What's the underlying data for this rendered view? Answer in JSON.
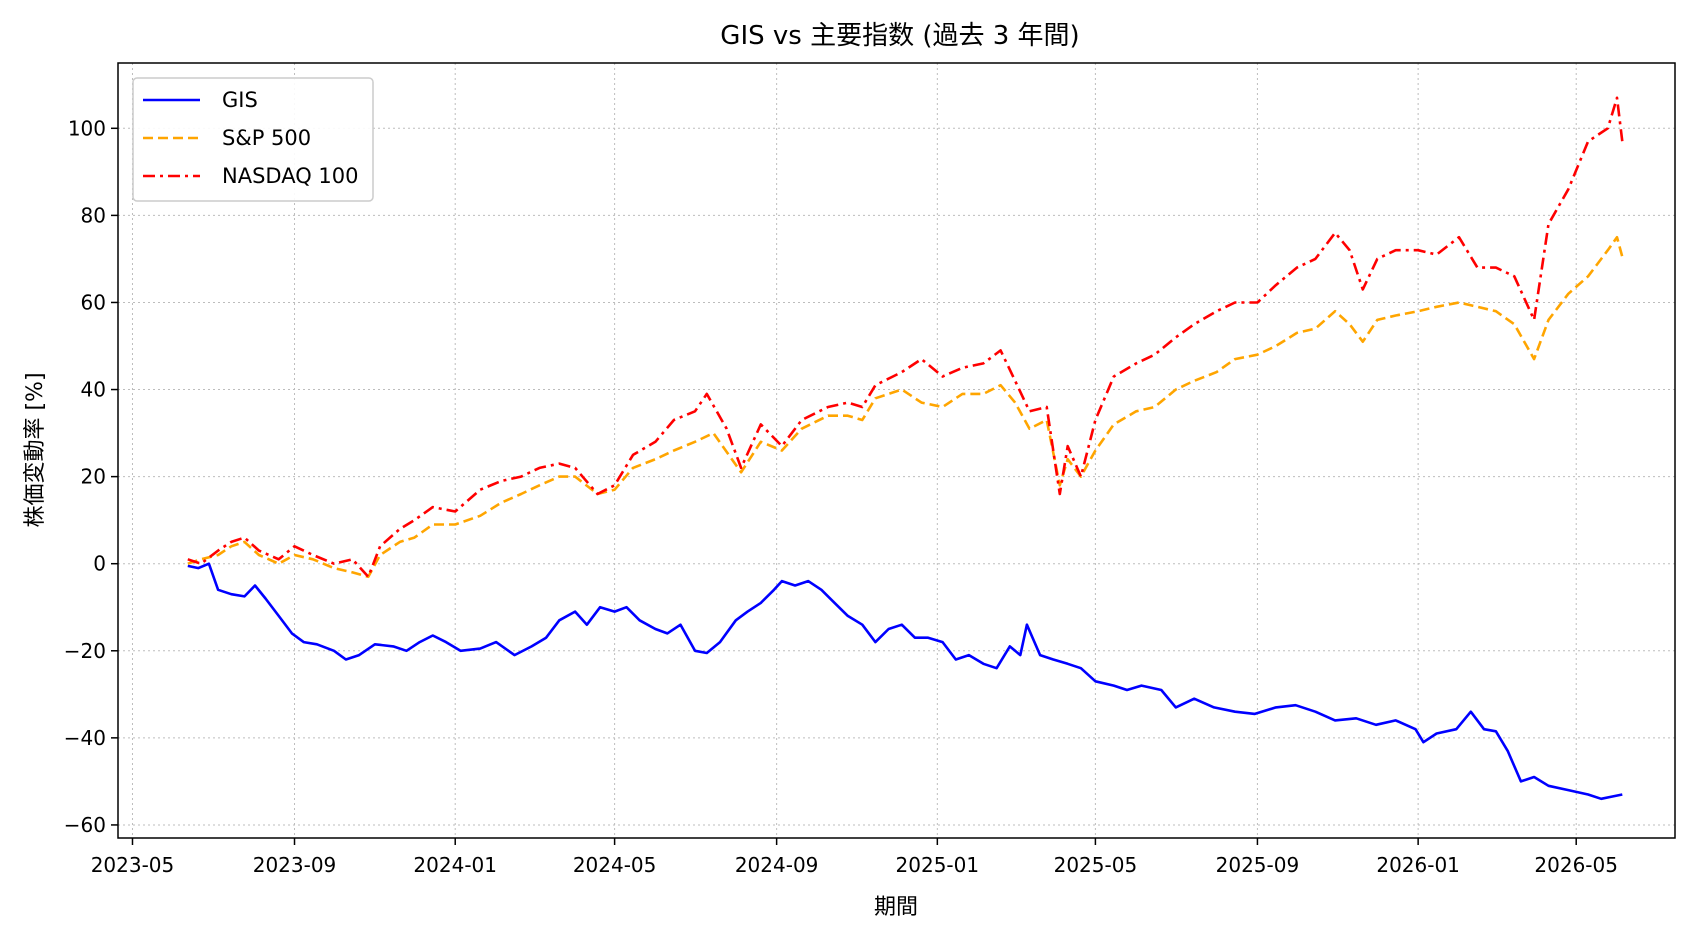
{
  "chart_data": {
    "type": "line",
    "title": "GIS vs 主要指数 (過去 3 年間)",
    "xlabel": "期間",
    "ylabel": "株価変動率 [%]",
    "xlim": [
      "2023-04-20",
      "2026-07-15"
    ],
    "ylim": [
      -63,
      115
    ],
    "xticks": [
      "2023-05",
      "2023-09",
      "2024-01",
      "2024-05",
      "2024-09",
      "2025-01",
      "2025-05",
      "2025-09",
      "2026-01",
      "2026-05"
    ],
    "yticks": [
      -60,
      -40,
      -20,
      0,
      20,
      40,
      60,
      80,
      100
    ],
    "grid": true,
    "legend_position": "top-left",
    "series": [
      {
        "name": "GIS",
        "color": "#0000ff",
        "dash": "solid",
        "points": [
          [
            "2023-06-12",
            -0.5
          ],
          [
            "2023-06-20",
            -1
          ],
          [
            "2023-06-28",
            0
          ],
          [
            "2023-07-05",
            -6
          ],
          [
            "2023-07-15",
            -7
          ],
          [
            "2023-07-25",
            -7.5
          ],
          [
            "2023-08-02",
            -5
          ],
          [
            "2023-08-10",
            -8
          ],
          [
            "2023-08-20",
            -12
          ],
          [
            "2023-08-30",
            -16
          ],
          [
            "2023-09-08",
            -18
          ],
          [
            "2023-09-18",
            -18.5
          ],
          [
            "2023-10-01",
            -20
          ],
          [
            "2023-10-10",
            -22
          ],
          [
            "2023-10-20",
            -21
          ],
          [
            "2023-11-01",
            -18.5
          ],
          [
            "2023-11-15",
            -19
          ],
          [
            "2023-11-25",
            -20
          ],
          [
            "2023-12-05",
            -18
          ],
          [
            "2023-12-15",
            -16.5
          ],
          [
            "2023-12-25",
            -18
          ],
          [
            "2024-01-05",
            -20
          ],
          [
            "2024-01-20",
            -19.5
          ],
          [
            "2024-02-01",
            -18
          ],
          [
            "2024-02-15",
            -21
          ],
          [
            "2024-02-28",
            -19
          ],
          [
            "2024-03-10",
            -17
          ],
          [
            "2024-03-20",
            -13
          ],
          [
            "2024-04-01",
            -11
          ],
          [
            "2024-04-10",
            -14
          ],
          [
            "2024-04-20",
            -10
          ],
          [
            "2024-05-01",
            -11
          ],
          [
            "2024-05-10",
            -10
          ],
          [
            "2024-05-20",
            -13
          ],
          [
            "2024-06-01",
            -15
          ],
          [
            "2024-06-10",
            -16
          ],
          [
            "2024-06-20",
            -14
          ],
          [
            "2024-07-01",
            -20
          ],
          [
            "2024-07-10",
            -20.5
          ],
          [
            "2024-07-20",
            -18
          ],
          [
            "2024-08-01",
            -13
          ],
          [
            "2024-08-10",
            -11
          ],
          [
            "2024-08-20",
            -9
          ],
          [
            "2024-08-30",
            -6
          ],
          [
            "2024-09-05",
            -4
          ],
          [
            "2024-09-15",
            -5
          ],
          [
            "2024-09-25",
            -4
          ],
          [
            "2024-10-05",
            -6
          ],
          [
            "2024-10-15",
            -9
          ],
          [
            "2024-10-25",
            -12
          ],
          [
            "2024-11-05",
            -14
          ],
          [
            "2024-11-15",
            -18
          ],
          [
            "2024-11-25",
            -15
          ],
          [
            "2024-12-05",
            -14
          ],
          [
            "2024-12-15",
            -17
          ],
          [
            "2024-12-25",
            -17
          ],
          [
            "2025-01-05",
            -18
          ],
          [
            "2025-01-15",
            -22
          ],
          [
            "2025-01-25",
            -21
          ],
          [
            "2025-02-05",
            -23
          ],
          [
            "2025-02-15",
            -24
          ],
          [
            "2025-02-25",
            -19
          ],
          [
            "2025-03-05",
            -21
          ],
          [
            "2025-03-10",
            -14
          ],
          [
            "2025-03-20",
            -21
          ],
          [
            "2025-03-30",
            -22
          ],
          [
            "2025-04-10",
            -23
          ],
          [
            "2025-04-20",
            -24
          ],
          [
            "2025-05-01",
            -27
          ],
          [
            "2025-05-15",
            -28
          ],
          [
            "2025-05-25",
            -29
          ],
          [
            "2025-06-05",
            -28
          ],
          [
            "2025-06-20",
            -29
          ],
          [
            "2025-07-01",
            -33
          ],
          [
            "2025-07-15",
            -31
          ],
          [
            "2025-07-30",
            -33
          ],
          [
            "2025-08-15",
            -34
          ],
          [
            "2025-08-30",
            -34.5
          ],
          [
            "2025-09-15",
            -33
          ],
          [
            "2025-09-30",
            -32.5
          ],
          [
            "2025-10-15",
            -34
          ],
          [
            "2025-10-30",
            -36
          ],
          [
            "2025-11-15",
            -35.5
          ],
          [
            "2025-11-30",
            -37
          ],
          [
            "2025-12-15",
            -36
          ],
          [
            "2025-12-30",
            -38
          ],
          [
            "2026-01-05",
            -41
          ],
          [
            "2026-01-15",
            -39
          ],
          [
            "2026-01-30",
            -38
          ],
          [
            "2026-02-10",
            -34
          ],
          [
            "2026-02-20",
            -38
          ],
          [
            "2026-03-01",
            -38.5
          ],
          [
            "2026-03-10",
            -43
          ],
          [
            "2026-03-20",
            -50
          ],
          [
            "2026-03-30",
            -49
          ],
          [
            "2026-04-10",
            -51
          ],
          [
            "2026-04-25",
            -52
          ],
          [
            "2026-05-10",
            -53
          ],
          [
            "2026-05-20",
            -54
          ],
          [
            "2026-05-28",
            -53.5
          ],
          [
            "2026-06-05",
            -53
          ]
        ]
      },
      {
        "name": "S&P 500",
        "color": "#ffa500",
        "dash": "dashed",
        "points": [
          [
            "2023-06-12",
            0
          ],
          [
            "2023-06-22",
            1
          ],
          [
            "2023-07-05",
            2
          ],
          [
            "2023-07-15",
            4
          ],
          [
            "2023-07-25",
            5
          ],
          [
            "2023-08-05",
            2
          ],
          [
            "2023-08-20",
            0
          ],
          [
            "2023-09-01",
            2
          ],
          [
            "2023-09-15",
            1
          ],
          [
            "2023-10-01",
            -1
          ],
          [
            "2023-10-15",
            -2
          ],
          [
            "2023-10-27",
            -3
          ],
          [
            "2023-11-05",
            2
          ],
          [
            "2023-11-20",
            5
          ],
          [
            "2023-12-01",
            6
          ],
          [
            "2023-12-15",
            9
          ],
          [
            "2024-01-01",
            9
          ],
          [
            "2024-01-20",
            11
          ],
          [
            "2024-02-05",
            14
          ],
          [
            "2024-02-20",
            16
          ],
          [
            "2024-03-05",
            18
          ],
          [
            "2024-03-20",
            20
          ],
          [
            "2024-04-01",
            20
          ],
          [
            "2024-04-18",
            16
          ],
          [
            "2024-05-01",
            17
          ],
          [
            "2024-05-15",
            22
          ],
          [
            "2024-06-01",
            24
          ],
          [
            "2024-06-15",
            26
          ],
          [
            "2024-07-01",
            28
          ],
          [
            "2024-07-15",
            30
          ],
          [
            "2024-08-05",
            21
          ],
          [
            "2024-08-20",
            28
          ],
          [
            "2024-09-05",
            26
          ],
          [
            "2024-09-20",
            31
          ],
          [
            "2024-10-10",
            34
          ],
          [
            "2024-10-25",
            34
          ],
          [
            "2024-11-05",
            33
          ],
          [
            "2024-11-15",
            38
          ],
          [
            "2024-12-05",
            40
          ],
          [
            "2024-12-20",
            37
          ],
          [
            "2025-01-05",
            36
          ],
          [
            "2025-01-20",
            39
          ],
          [
            "2025-02-05",
            39
          ],
          [
            "2025-02-18",
            41
          ],
          [
            "2025-03-01",
            37
          ],
          [
            "2025-03-12",
            31
          ],
          [
            "2025-03-25",
            33
          ],
          [
            "2025-04-04",
            18
          ],
          [
            "2025-04-10",
            24
          ],
          [
            "2025-04-20",
            20
          ],
          [
            "2025-05-01",
            26
          ],
          [
            "2025-05-15",
            32
          ],
          [
            "2025-06-01",
            35
          ],
          [
            "2025-06-15",
            36
          ],
          [
            "2025-07-01",
            40
          ],
          [
            "2025-07-15",
            42
          ],
          [
            "2025-08-01",
            44
          ],
          [
            "2025-08-15",
            47
          ],
          [
            "2025-09-01",
            48
          ],
          [
            "2025-09-15",
            50
          ],
          [
            "2025-10-01",
            53
          ],
          [
            "2025-10-15",
            54
          ],
          [
            "2025-10-30",
            58
          ],
          [
            "2025-11-10",
            55
          ],
          [
            "2025-11-20",
            51
          ],
          [
            "2025-12-01",
            56
          ],
          [
            "2025-12-15",
            57
          ],
          [
            "2026-01-01",
            58
          ],
          [
            "2026-01-15",
            59
          ],
          [
            "2026-02-01",
            60
          ],
          [
            "2026-02-15",
            59
          ],
          [
            "2026-03-01",
            58
          ],
          [
            "2026-03-15",
            55
          ],
          [
            "2026-03-30",
            47
          ],
          [
            "2026-04-10",
            56
          ],
          [
            "2026-04-25",
            62
          ],
          [
            "2026-05-10",
            66
          ],
          [
            "2026-05-25",
            72
          ],
          [
            "2026-06-01",
            75
          ],
          [
            "2026-06-05",
            70.5
          ]
        ]
      },
      {
        "name": "NASDAQ 100",
        "color": "#ff0000",
        "dash": "dashdot",
        "points": [
          [
            "2023-06-12",
            1
          ],
          [
            "2023-06-22",
            0
          ],
          [
            "2023-07-05",
            3
          ],
          [
            "2023-07-15",
            5
          ],
          [
            "2023-07-25",
            6
          ],
          [
            "2023-08-05",
            3
          ],
          [
            "2023-08-20",
            1
          ],
          [
            "2023-09-01",
            4
          ],
          [
            "2023-09-15",
            2
          ],
          [
            "2023-10-01",
            0
          ],
          [
            "2023-10-15",
            1
          ],
          [
            "2023-10-27",
            -3
          ],
          [
            "2023-11-05",
            4
          ],
          [
            "2023-11-20",
            8
          ],
          [
            "2023-12-01",
            10
          ],
          [
            "2023-12-15",
            13
          ],
          [
            "2024-01-01",
            12
          ],
          [
            "2024-01-20",
            17
          ],
          [
            "2024-02-05",
            19
          ],
          [
            "2024-02-20",
            20
          ],
          [
            "2024-03-05",
            22
          ],
          [
            "2024-03-20",
            23
          ],
          [
            "2024-04-01",
            22
          ],
          [
            "2024-04-18",
            16
          ],
          [
            "2024-05-01",
            18
          ],
          [
            "2024-05-15",
            25
          ],
          [
            "2024-06-01",
            28
          ],
          [
            "2024-06-15",
            33
          ],
          [
            "2024-07-01",
            35
          ],
          [
            "2024-07-10",
            39
          ],
          [
            "2024-07-25",
            31
          ],
          [
            "2024-08-05",
            22
          ],
          [
            "2024-08-20",
            32
          ],
          [
            "2024-09-05",
            27
          ],
          [
            "2024-09-20",
            33
          ],
          [
            "2024-10-10",
            36
          ],
          [
            "2024-10-25",
            37
          ],
          [
            "2024-11-05",
            36
          ],
          [
            "2024-11-15",
            41
          ],
          [
            "2024-12-05",
            44
          ],
          [
            "2024-12-20",
            47
          ],
          [
            "2025-01-05",
            43
          ],
          [
            "2025-01-20",
            45
          ],
          [
            "2025-02-05",
            46
          ],
          [
            "2025-02-18",
            49
          ],
          [
            "2025-03-01",
            42
          ],
          [
            "2025-03-12",
            35
          ],
          [
            "2025-03-25",
            36
          ],
          [
            "2025-04-04",
            16
          ],
          [
            "2025-04-10",
            27
          ],
          [
            "2025-04-20",
            20
          ],
          [
            "2025-05-01",
            33
          ],
          [
            "2025-05-15",
            43
          ],
          [
            "2025-06-01",
            46
          ],
          [
            "2025-06-15",
            48
          ],
          [
            "2025-07-01",
            52
          ],
          [
            "2025-07-15",
            55
          ],
          [
            "2025-08-01",
            58
          ],
          [
            "2025-08-15",
            60
          ],
          [
            "2025-09-01",
            60
          ],
          [
            "2025-09-15",
            64
          ],
          [
            "2025-10-01",
            68
          ],
          [
            "2025-10-15",
            70
          ],
          [
            "2025-10-30",
            76
          ],
          [
            "2025-11-10",
            72
          ],
          [
            "2025-11-20",
            63
          ],
          [
            "2025-12-01",
            70
          ],
          [
            "2025-12-15",
            72
          ],
          [
            "2026-01-01",
            72
          ],
          [
            "2026-01-15",
            71
          ],
          [
            "2026-02-01",
            75
          ],
          [
            "2026-02-15",
            68
          ],
          [
            "2026-03-01",
            68
          ],
          [
            "2026-03-15",
            66
          ],
          [
            "2026-03-30",
            56
          ],
          [
            "2026-04-10",
            78
          ],
          [
            "2026-04-25",
            86
          ],
          [
            "2026-05-10",
            97
          ],
          [
            "2026-05-25",
            100
          ],
          [
            "2026-06-01",
            107
          ],
          [
            "2026-06-05",
            97
          ]
        ]
      }
    ]
  }
}
